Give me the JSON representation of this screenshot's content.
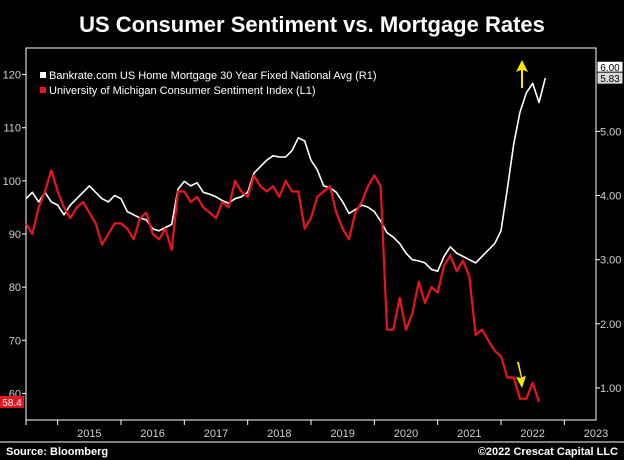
{
  "chart_data": {
    "type": "line",
    "title": "US Consumer Sentiment vs. Mortgage Rates",
    "x_axis": {
      "tick_labels": [
        "2015",
        "2016",
        "2017",
        "2018",
        "2019",
        "2020",
        "2021",
        "2022",
        "2023"
      ],
      "range": [
        2014.5,
        2023.5
      ]
    },
    "y_left": {
      "range": [
        55,
        125
      ],
      "ticks": [
        "60",
        "70",
        "80",
        "90",
        "100",
        "110",
        "120"
      ]
    },
    "y_right": {
      "range": [
        0.5,
        6.3
      ],
      "ticks": [
        "1.00",
        "2.00",
        "3.00",
        "4.00",
        "5.00",
        "6.00"
      ]
    },
    "grid": false,
    "legend_position": "top-left",
    "series": [
      {
        "name": "Bankrate.com US Home Mortgage 30 Year Fixed National Avg  (R1)",
        "axis": "right",
        "color": "#ffffff",
        "points": [
          [
            2014.5,
            3.95
          ],
          [
            2014.6,
            4.05
          ],
          [
            2014.7,
            3.9
          ],
          [
            2014.8,
            4.05
          ],
          [
            2014.9,
            3.9
          ],
          [
            2015.0,
            3.85
          ],
          [
            2015.1,
            3.7
          ],
          [
            2015.2,
            3.85
          ],
          [
            2015.3,
            3.95
          ],
          [
            2015.4,
            4.05
          ],
          [
            2015.5,
            4.15
          ],
          [
            2015.6,
            4.05
          ],
          [
            2015.7,
            3.95
          ],
          [
            2015.8,
            3.9
          ],
          [
            2015.9,
            4.0
          ],
          [
            2016.0,
            3.95
          ],
          [
            2016.1,
            3.75
          ],
          [
            2016.2,
            3.7
          ],
          [
            2016.3,
            3.65
          ],
          [
            2016.4,
            3.62
          ],
          [
            2016.5,
            3.48
          ],
          [
            2016.6,
            3.45
          ],
          [
            2016.7,
            3.5
          ],
          [
            2016.8,
            3.55
          ],
          [
            2016.9,
            4.1
          ],
          [
            2017.0,
            4.22
          ],
          [
            2017.1,
            4.15
          ],
          [
            2017.2,
            4.2
          ],
          [
            2017.3,
            4.05
          ],
          [
            2017.4,
            4.02
          ],
          [
            2017.5,
            3.98
          ],
          [
            2017.6,
            3.92
          ],
          [
            2017.7,
            3.88
          ],
          [
            2017.8,
            3.95
          ],
          [
            2017.9,
            3.98
          ],
          [
            2018.0,
            4.05
          ],
          [
            2018.1,
            4.35
          ],
          [
            2018.2,
            4.45
          ],
          [
            2018.3,
            4.55
          ],
          [
            2018.4,
            4.62
          ],
          [
            2018.5,
            4.6
          ],
          [
            2018.6,
            4.6
          ],
          [
            2018.7,
            4.7
          ],
          [
            2018.8,
            4.9
          ],
          [
            2018.9,
            4.85
          ],
          [
            2019.0,
            4.55
          ],
          [
            2019.1,
            4.4
          ],
          [
            2019.2,
            4.15
          ],
          [
            2019.3,
            4.12
          ],
          [
            2019.4,
            4.05
          ],
          [
            2019.5,
            3.9
          ],
          [
            2019.6,
            3.72
          ],
          [
            2019.7,
            3.78
          ],
          [
            2019.8,
            3.85
          ],
          [
            2019.9,
            3.82
          ],
          [
            2020.0,
            3.75
          ],
          [
            2020.1,
            3.6
          ],
          [
            2020.2,
            3.42
          ],
          [
            2020.3,
            3.35
          ],
          [
            2020.4,
            3.25
          ],
          [
            2020.5,
            3.1
          ],
          [
            2020.6,
            3.0
          ],
          [
            2020.7,
            2.98
          ],
          [
            2020.8,
            2.95
          ],
          [
            2020.9,
            2.85
          ],
          [
            2021.0,
            2.82
          ],
          [
            2021.1,
            3.05
          ],
          [
            2021.2,
            3.2
          ],
          [
            2021.3,
            3.1
          ],
          [
            2021.4,
            3.05
          ],
          [
            2021.5,
            3.0
          ],
          [
            2021.6,
            2.95
          ],
          [
            2021.7,
            3.05
          ],
          [
            2021.8,
            3.15
          ],
          [
            2021.9,
            3.25
          ],
          [
            2022.0,
            3.45
          ],
          [
            2022.1,
            4.1
          ],
          [
            2022.2,
            4.8
          ],
          [
            2022.3,
            5.3
          ],
          [
            2022.4,
            5.6
          ],
          [
            2022.5,
            5.75
          ],
          [
            2022.6,
            5.45
          ],
          [
            2022.7,
            5.83
          ]
        ]
      },
      {
        "name": "University of Michigan Consumer Sentiment Index  (L1)",
        "axis": "left",
        "color": "#e8141e",
        "points": [
          [
            2014.5,
            92
          ],
          [
            2014.6,
            90
          ],
          [
            2014.7,
            95
          ],
          [
            2014.8,
            98
          ],
          [
            2014.9,
            102
          ],
          [
            2015.0,
            98
          ],
          [
            2015.1,
            95
          ],
          [
            2015.2,
            93
          ],
          [
            2015.3,
            95
          ],
          [
            2015.4,
            96
          ],
          [
            2015.5,
            94
          ],
          [
            2015.6,
            92
          ],
          [
            2015.7,
            88
          ],
          [
            2015.8,
            90
          ],
          [
            2015.9,
            92
          ],
          [
            2016.0,
            92
          ],
          [
            2016.1,
            91
          ],
          [
            2016.2,
            89
          ],
          [
            2016.3,
            93
          ],
          [
            2016.4,
            94
          ],
          [
            2016.5,
            90
          ],
          [
            2016.6,
            89
          ],
          [
            2016.7,
            91
          ],
          [
            2016.8,
            87
          ],
          [
            2016.9,
            98
          ],
          [
            2017.0,
            98
          ],
          [
            2017.1,
            96
          ],
          [
            2017.2,
            97
          ],
          [
            2017.3,
            95
          ],
          [
            2017.4,
            94
          ],
          [
            2017.5,
            93
          ],
          [
            2017.6,
            96
          ],
          [
            2017.7,
            95
          ],
          [
            2017.8,
            100
          ],
          [
            2017.9,
            98
          ],
          [
            2018.0,
            97
          ],
          [
            2018.1,
            101
          ],
          [
            2018.2,
            99
          ],
          [
            2018.3,
            98
          ],
          [
            2018.4,
            99
          ],
          [
            2018.5,
            97
          ],
          [
            2018.6,
            100
          ],
          [
            2018.7,
            98
          ],
          [
            2018.8,
            98
          ],
          [
            2018.9,
            91
          ],
          [
            2019.0,
            93
          ],
          [
            2019.1,
            97
          ],
          [
            2019.2,
            98
          ],
          [
            2019.3,
            99
          ],
          [
            2019.4,
            94
          ],
          [
            2019.5,
            91
          ],
          [
            2019.6,
            89
          ],
          [
            2019.7,
            94
          ],
          [
            2019.8,
            96
          ],
          [
            2019.9,
            99
          ],
          [
            2020.0,
            101
          ],
          [
            2020.1,
            99
          ],
          [
            2020.2,
            72
          ],
          [
            2020.3,
            72
          ],
          [
            2020.4,
            78
          ],
          [
            2020.5,
            72
          ],
          [
            2020.6,
            75
          ],
          [
            2020.7,
            81
          ],
          [
            2020.8,
            77
          ],
          [
            2020.9,
            80
          ],
          [
            2021.0,
            79
          ],
          [
            2021.1,
            84
          ],
          [
            2021.2,
            86
          ],
          [
            2021.3,
            83
          ],
          [
            2021.4,
            85
          ],
          [
            2021.5,
            82
          ],
          [
            2021.6,
            71
          ],
          [
            2021.7,
            72
          ],
          [
            2021.8,
            70
          ],
          [
            2021.9,
            68
          ],
          [
            2022.0,
            67
          ],
          [
            2022.1,
            63
          ],
          [
            2022.2,
            63
          ],
          [
            2022.3,
            59
          ],
          [
            2022.4,
            59
          ],
          [
            2022.5,
            62
          ],
          [
            2022.6,
            58.4
          ]
        ]
      }
    ],
    "badges": [
      {
        "label": "6.00",
        "axis": "right",
        "value": 6.0
      },
      {
        "label": "5.83",
        "axis": "right",
        "value": 5.83
      },
      {
        "label": "58.4",
        "axis": "left",
        "value": 58.4
      }
    ],
    "annotations": [
      {
        "kind": "arrow-up",
        "color": "#ffe600"
      },
      {
        "kind": "arrow-down",
        "color": "#ffe600"
      }
    ],
    "source": "Source: Bloomberg",
    "credit": "©2022 Crescat Capital LLC"
  }
}
